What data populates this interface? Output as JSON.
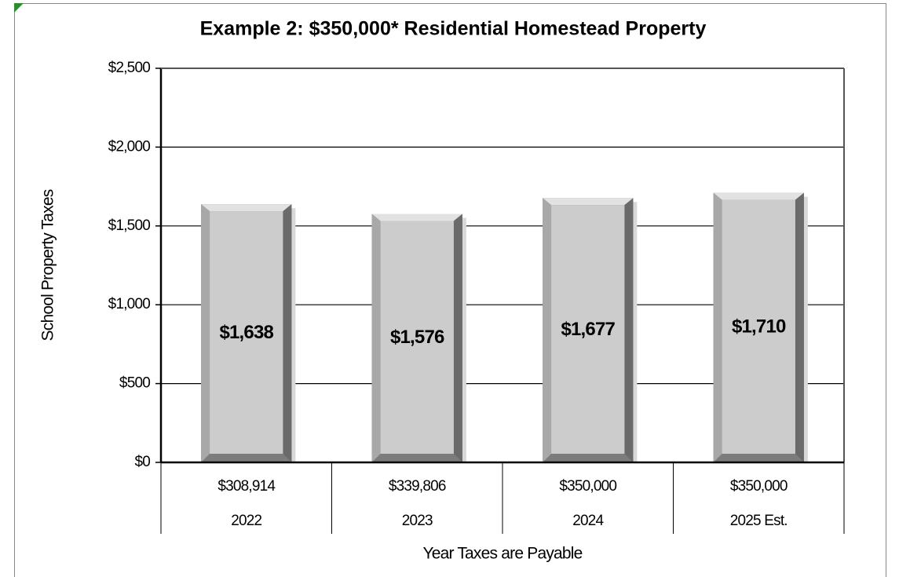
{
  "chart_data": {
    "type": "bar",
    "title": "Example 2: $350,000* Residential Homestead Property",
    "y_label": "School Property Taxes",
    "x_label": "Year Taxes are Payable",
    "categories": [
      "2022",
      "2023",
      "2024",
      "2025 Est."
    ],
    "category_values": [
      "$308,914",
      "$339,806",
      "$350,000",
      "$350,000"
    ],
    "values": [
      1638,
      1576,
      1677,
      1710
    ],
    "value_labels": [
      "$1,638",
      "$1,576",
      "$1,677",
      "$1,710"
    ],
    "color": "#cccccc",
    "ylim": [
      0,
      2500
    ],
    "yticks": [
      {
        "value": 0,
        "label": "$0"
      },
      {
        "value": 500,
        "label": "$500"
      },
      {
        "value": 1000,
        "label": "$1,000"
      },
      {
        "value": 1500,
        "label": "$1,500"
      },
      {
        "value": 2000,
        "label": "$2,000"
      },
      {
        "value": 2500,
        "label": "$2,500"
      }
    ],
    "grid": true
  }
}
